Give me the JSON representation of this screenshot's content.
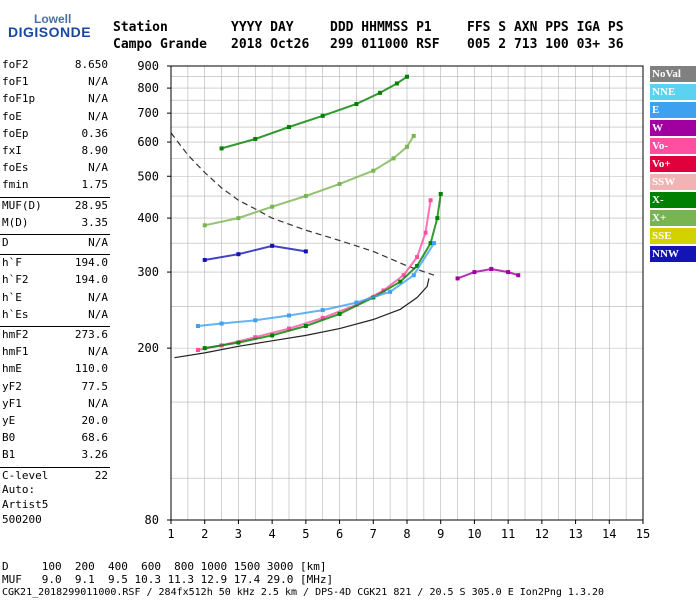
{
  "logo": {
    "line1": "Lowell",
    "line2": "DIGISONDE"
  },
  "header": {
    "row1": [
      "Station",
      "YYYY DAY",
      "DDD HHMMSS P1",
      "FFS S AXN PPS IGA PS"
    ],
    "row2": [
      "Campo Grande",
      "2018 Oct26",
      "299 011000 RSF",
      "005 2 713 100 03+ 36"
    ]
  },
  "params": [
    {
      "label": "foF2",
      "value": "8.650"
    },
    {
      "label": "foF1",
      "value": "N/A"
    },
    {
      "label": "foF1p",
      "value": "N/A"
    },
    {
      "label": "foE",
      "value": "N/A"
    },
    {
      "label": "foEp",
      "value": "0.36"
    },
    {
      "label": "fxI",
      "value": "8.90"
    },
    {
      "label": "foEs",
      "value": "N/A"
    },
    {
      "label": "fmin",
      "value": "1.75"
    },
    {
      "label": "MUF(D)",
      "value": "28.95"
    },
    {
      "label": "M(D)",
      "value": "3.35"
    },
    {
      "label": "D",
      "value": "N/A"
    },
    {
      "label": "h`F",
      "value": "194.0"
    },
    {
      "label": "h`F2",
      "value": "194.0"
    },
    {
      "label": "h`E",
      "value": "N/A"
    },
    {
      "label": "h`Es",
      "value": "N/A"
    },
    {
      "label": "hmF2",
      "value": "273.6"
    },
    {
      "label": "hmF1",
      "value": "N/A"
    },
    {
      "label": "hmE",
      "value": "110.0"
    },
    {
      "label": "yF2",
      "value": "77.5"
    },
    {
      "label": "yF1",
      "value": "N/A"
    },
    {
      "label": "yE",
      "value": "20.0"
    },
    {
      "label": "B0",
      "value": "68.6"
    },
    {
      "label": "B1",
      "value": "3.26"
    },
    {
      "label": "C-level",
      "value": "22"
    }
  ],
  "auto": {
    "line1": "Auto:",
    "line2": "Artist5",
    "line3": "500200"
  },
  "footer": {
    "d_row": "D     100  200  400  600  800 1000 1500 3000 [km]",
    "muf_row": "MUF   9.0  9.1  9.5 10.3 11.3 12.9 17.4 29.0 [MHz]",
    "file_row": "CGK21_2018299011000.RSF / 284fx512h 50 kHz 2.5 km / DPS-4D CGK21 821 / 20.5 S 305.0 E Ion2Png 1.3.20"
  },
  "legend": [
    {
      "label": "NoVal",
      "color": "#808080"
    },
    {
      "label": "NNE",
      "color": "#5ad2f0"
    },
    {
      "label": "E",
      "color": "#3ea0f0"
    },
    {
      "label": "W",
      "color": "#a000a0"
    },
    {
      "label": "Vo-",
      "color": "#ff4fa0"
    },
    {
      "label": "Vo+",
      "color": "#e0003c"
    },
    {
      "label": "SSW",
      "color": "#f0b4b4"
    },
    {
      "label": "X-",
      "color": "#008000"
    },
    {
      "label": "X+",
      "color": "#78b450"
    },
    {
      "label": "SSE",
      "color": "#d2d200"
    },
    {
      "label": "NNW",
      "color": "#1414b4"
    }
  ],
  "chart_data": {
    "type": "scatter",
    "xlim": [
      1,
      15
    ],
    "ylim": [
      80,
      900
    ],
    "y_scale": "log",
    "x_ticks": [
      1,
      2,
      3,
      4,
      5,
      6,
      7,
      8,
      9,
      10,
      11,
      12,
      13,
      14,
      15
    ],
    "y_ticks": [
      80,
      200,
      300,
      400,
      500,
      600,
      700,
      800,
      900
    ],
    "grid": true,
    "legend_placement": "right",
    "series": [
      {
        "name": "Vo-",
        "color": "#ff4fa0",
        "x": [
          1.8,
          2.5,
          3.5,
          4.5,
          5.5,
          6.5,
          7.3,
          7.9,
          8.3,
          8.55,
          8.7
        ],
        "y": [
          198,
          203,
          212,
          222,
          235,
          252,
          272,
          295,
          325,
          370,
          440
        ]
      },
      {
        "name": "X-",
        "color": "#008000",
        "x": [
          2.0,
          3.0,
          4.0,
          5.0,
          6.0,
          7.0,
          7.8,
          8.3,
          8.7,
          8.9,
          9.0
        ],
        "y": [
          200,
          206,
          214,
          225,
          240,
          262,
          285,
          310,
          350,
          400,
          455
        ]
      },
      {
        "name": "E",
        "color": "#3ea0f0",
        "x": [
          1.8,
          2.5,
          3.5,
          4.5,
          5.5,
          6.5,
          7.5,
          8.2,
          8.8
        ],
        "y": [
          225,
          228,
          232,
          238,
          245,
          255,
          270,
          295,
          350
        ]
      },
      {
        "name": "W",
        "color": "#a000a0",
        "x": [
          9.5,
          10.0,
          10.5,
          11.0,
          11.3
        ],
        "y": [
          290,
          300,
          305,
          300,
          295
        ]
      },
      {
        "name": "X+",
        "color": "#78b450",
        "x": [
          2.0,
          3.0,
          4.0,
          5.0,
          6.0,
          7.0,
          7.6,
          8.0,
          8.2
        ],
        "y": [
          385,
          400,
          425,
          450,
          480,
          515,
          550,
          585,
          620
        ]
      },
      {
        "name": "X-",
        "color": "#008000",
        "x": [
          2.5,
          3.5,
          4.5,
          5.5,
          6.5,
          7.2,
          7.7,
          8.0
        ],
        "y": [
          580,
          610,
          650,
          690,
          735,
          780,
          820,
          850
        ]
      },
      {
        "name": "NNW",
        "color": "#1414b4",
        "x": [
          2.0,
          3.0,
          4.0,
          5.0
        ],
        "y": [
          320,
          330,
          345,
          335
        ]
      }
    ],
    "profile": {
      "x": [
        1.1,
        2.0,
        3.0,
        4.0,
        5.0,
        6.0,
        7.0,
        7.8,
        8.3,
        8.6,
        8.65
      ],
      "y": [
        190,
        195,
        202,
        208,
        214,
        222,
        233,
        246,
        262,
        278,
        290
      ]
    },
    "dashed": {
      "x": [
        1.0,
        1.5,
        2.0,
        2.5,
        3.0,
        3.5,
        4.0,
        5.0,
        6.0,
        7.0,
        8.0,
        8.8
      ],
      "y": [
        630,
        560,
        510,
        470,
        440,
        420,
        400,
        375,
        355,
        335,
        310,
        295
      ]
    }
  }
}
